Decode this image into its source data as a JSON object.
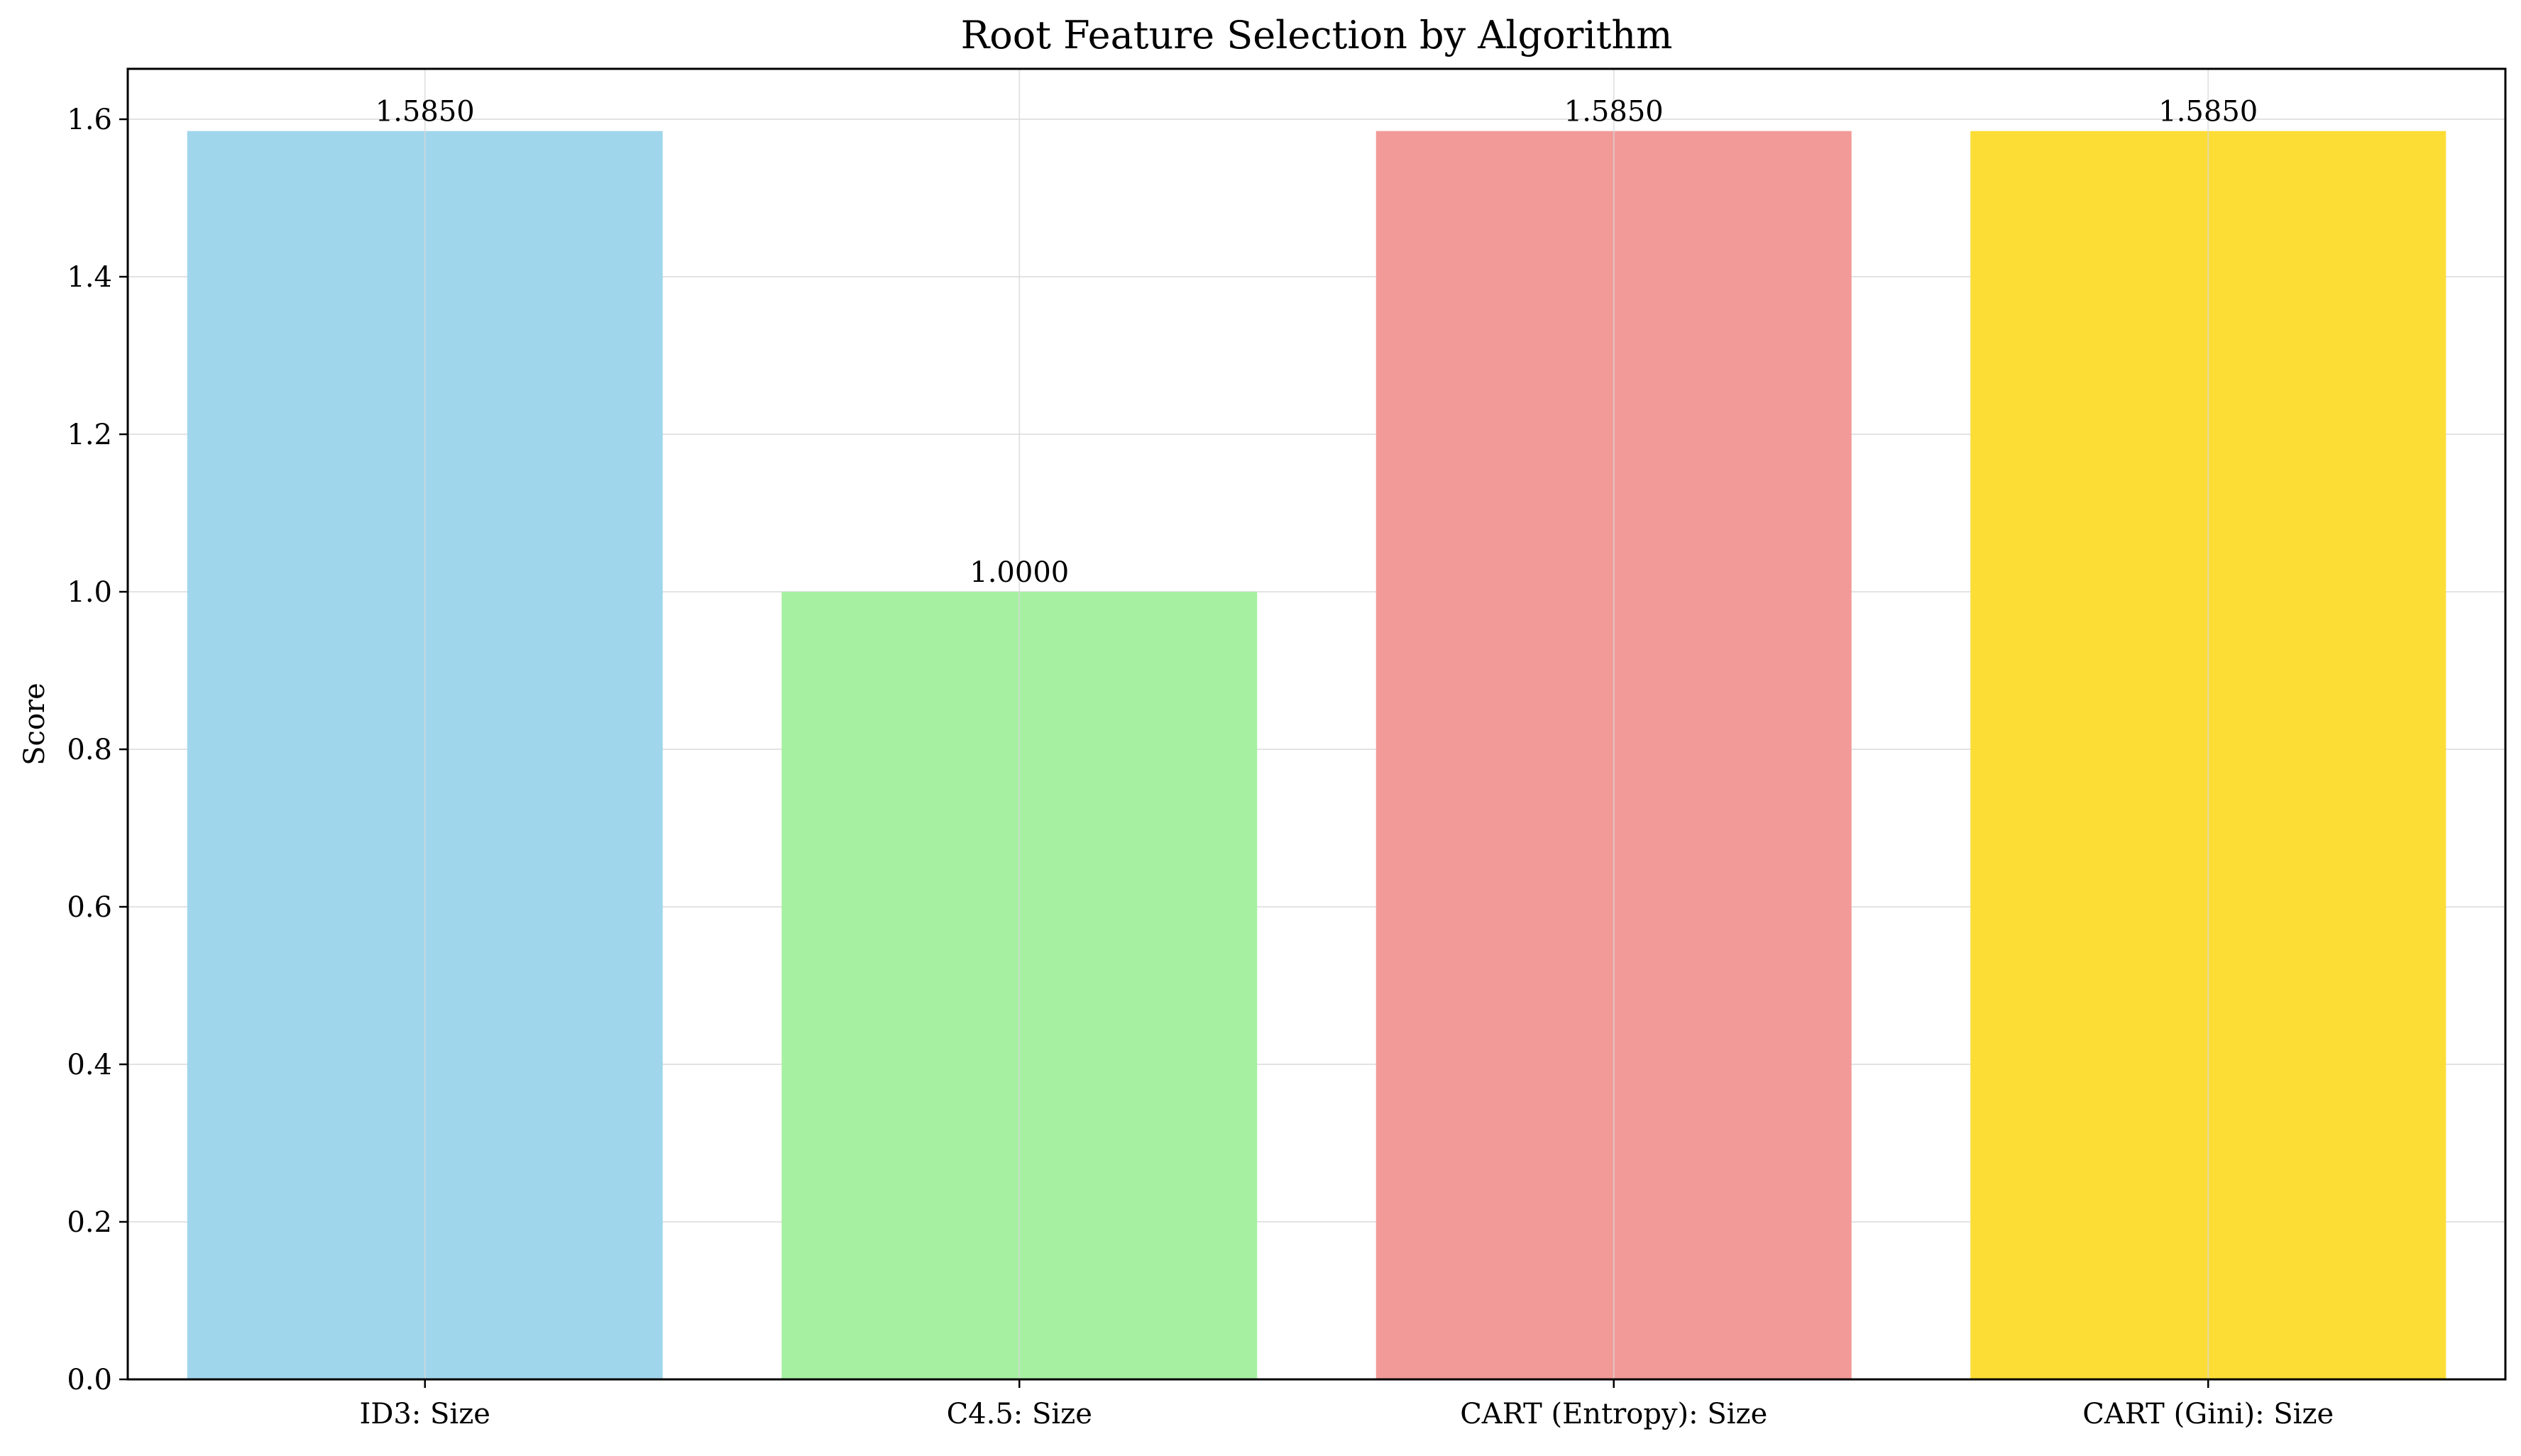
{
  "chart_data": {
    "type": "bar",
    "title": "Root Feature Selection by Algorithm",
    "xlabel": "",
    "ylabel": "Score",
    "categories": [
      "ID3: Size",
      "C4.5: Size",
      "CART (Entropy): Size",
      "CART (Gini): Size"
    ],
    "values": [
      1.585,
      1.0,
      1.585,
      1.585
    ],
    "value_labels": [
      "1.5850",
      "1.0000",
      "1.5850",
      "1.5850"
    ],
    "colors": [
      "#a0d6ec",
      "#a6f0a2",
      "#f29a98",
      "#fcdd35"
    ],
    "ylim": [
      0,
      1.664
    ],
    "yticks": [
      0.0,
      0.2,
      0.4,
      0.6,
      0.8,
      1.0,
      1.2,
      1.4,
      1.6
    ],
    "ytick_labels": [
      "0.0",
      "0.2",
      "0.4",
      "0.6",
      "0.8",
      "1.0",
      "1.2",
      "1.4",
      "1.6"
    ],
    "grid": true,
    "legend": false
  }
}
